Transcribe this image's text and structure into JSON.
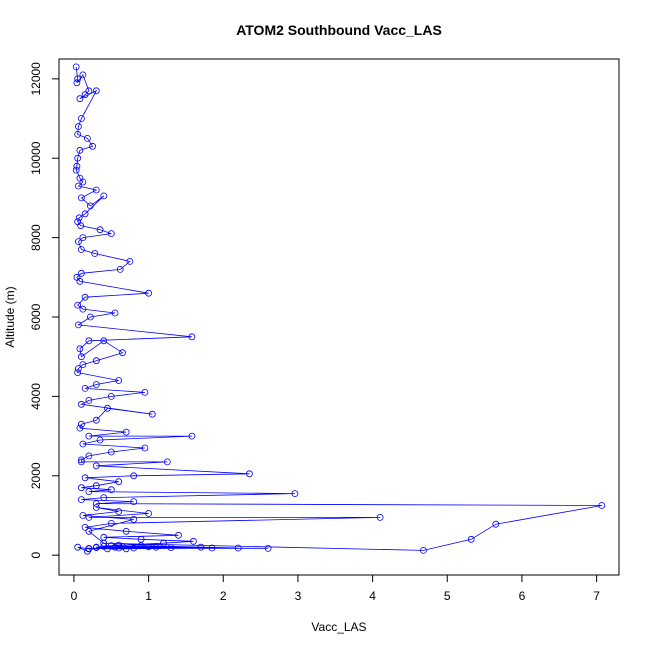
{
  "chart_data": {
    "type": "line",
    "title": "ATOM2 Southbound Vacc_LAS",
    "xlabel": "Vacc_LAS",
    "ylabel": "Altitude (m)",
    "xlim": [
      -0.2,
      7.3
    ],
    "ylim": [
      -500,
      12500
    ],
    "xticks": [
      0,
      1,
      2,
      3,
      4,
      5,
      6,
      7
    ],
    "yticks": [
      0,
      2000,
      4000,
      6000,
      8000,
      10000,
      12000
    ],
    "grid": false,
    "legend": "none",
    "series_color": "#0000ff",
    "marker": "open-circle",
    "series": [
      {
        "x": [
          0.03,
          0.05,
          0.04,
          0.12,
          0.2,
          0.15,
          0.08,
          0.3,
          0.1,
          0.06,
          0.05,
          0.18,
          0.25,
          0.08,
          0.05,
          0.04,
          0.03,
          0.08,
          0.12,
          0.06,
          0.3,
          0.1,
          0.22,
          0.4,
          0.15,
          0.07,
          0.05,
          0.09,
          0.35,
          0.5,
          0.12,
          0.06,
          0.1,
          0.28,
          0.75,
          0.62,
          0.1,
          0.04,
          0.08,
          1.0,
          0.15,
          0.05,
          0.12,
          0.55,
          0.22,
          0.06,
          1.58,
          0.2,
          0.08,
          0.1,
          0.4,
          0.65,
          0.3,
          0.12,
          0.06,
          0.05,
          0.6,
          0.3,
          0.15,
          0.95,
          0.5,
          0.2,
          0.1,
          1.05,
          0.45,
          0.3,
          0.1,
          0.08,
          0.7,
          0.2,
          1.58,
          0.35,
          0.12,
          0.95,
          0.5,
          0.2,
          0.1,
          0.1,
          1.25,
          0.3,
          2.35,
          0.8,
          0.15,
          0.6,
          0.3,
          0.1,
          0.5,
          0.2,
          2.96,
          0.4,
          0.1,
          0.8,
          0.3,
          7.07,
          5.65,
          5.32,
          4.68,
          0.4,
          0.2,
          0.8,
          0.12,
          0.6,
          0.3,
          1.0,
          0.2,
          4.1,
          0.5,
          0.15,
          0.7,
          1.4,
          0.4,
          0.9,
          1.6,
          1.2,
          0.6,
          0.3,
          2.6,
          1.85,
          1.7,
          0.65,
          0.9,
          2.2,
          0.45,
          0.3,
          1.0,
          0.6,
          0.55,
          0.2,
          0.7,
          1.3,
          0.4,
          0.5,
          1.1,
          0.8,
          0.2,
          0.05,
          0.18
        ],
        "y": [
          12300,
          12000,
          11900,
          12100,
          11700,
          11600,
          11500,
          11700,
          11000,
          10800,
          10600,
          10500,
          10300,
          10200,
          10000,
          9800,
          9700,
          9500,
          9400,
          9300,
          9200,
          9000,
          8800,
          9050,
          8600,
          8500,
          8400,
          8300,
          8200,
          8100,
          8000,
          7900,
          7700,
          7600,
          7400,
          7200,
          7100,
          7000,
          6900,
          6600,
          6500,
          6300,
          6200,
          6100,
          6000,
          5800,
          5500,
          5400,
          5200,
          5000,
          5400,
          5100,
          4900,
          4800,
          4700,
          4600,
          4400,
          4300,
          4200,
          4100,
          4000,
          3900,
          3800,
          3550,
          3700,
          3400,
          3300,
          3200,
          3100,
          3000,
          3000,
          2900,
          2800,
          2700,
          2600,
          2500,
          2400,
          2350,
          2350,
          2250,
          2050,
          2000,
          1950,
          1850,
          1750,
          1700,
          1650,
          1600,
          1550,
          1450,
          1400,
          1350,
          1300,
          1250,
          780,
          400,
          120,
          300,
          600,
          900,
          1000,
          1100,
          1200,
          1050,
          950,
          950,
          800,
          700,
          600,
          500,
          450,
          400,
          350,
          300,
          250,
          200,
          170,
          180,
          200,
          220,
          240,
          180,
          160,
          190,
          210,
          180,
          200,
          170,
          160,
          190,
          220,
          240,
          200,
          180,
          160,
          200,
          100
        ]
      }
    ]
  }
}
